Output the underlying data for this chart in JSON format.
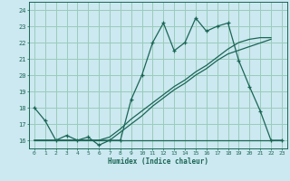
{
  "title": "",
  "xlabel": "Humidex (Indice chaleur)",
  "background_color": "#cce8f0",
  "grid_color": "#99ccbb",
  "line_color": "#1a6655",
  "xlim": [
    -0.5,
    23.5
  ],
  "ylim": [
    15.5,
    24.5
  ],
  "xticks": [
    0,
    1,
    2,
    3,
    4,
    5,
    6,
    7,
    8,
    9,
    10,
    11,
    12,
    13,
    14,
    15,
    16,
    17,
    18,
    19,
    20,
    21,
    22,
    23
  ],
  "yticks": [
    16,
    17,
    18,
    19,
    20,
    21,
    22,
    23,
    24
  ],
  "line1_x": [
    0,
    1,
    2,
    3,
    4,
    5,
    6,
    7,
    8,
    9,
    10,
    11,
    12,
    13,
    14,
    15,
    16,
    17,
    18,
    19,
    20,
    21,
    22,
    23
  ],
  "line1_y": [
    18,
    17.2,
    16,
    16.3,
    16,
    16.2,
    15.7,
    16,
    16,
    18.5,
    20,
    22,
    23.2,
    21.5,
    22,
    23.5,
    22.7,
    23,
    23.2,
    20.9,
    19.3,
    17.8,
    16,
    16
  ],
  "line2_x": [
    0,
    23
  ],
  "line2_y": [
    16,
    16
  ],
  "line3_x": [
    0,
    1,
    2,
    3,
    4,
    5,
    6,
    7,
    8,
    9,
    10,
    11,
    12,
    13,
    14,
    15,
    16,
    17,
    18,
    19,
    20,
    21,
    22
  ],
  "line3_y": [
    16,
    16,
    16,
    16,
    16,
    16,
    16,
    16.2,
    16.7,
    17.3,
    17.8,
    18.3,
    18.8,
    19.3,
    19.7,
    20.2,
    20.6,
    21.1,
    21.6,
    22.0,
    22.2,
    22.3,
    22.3
  ],
  "line4_x": [
    0,
    1,
    2,
    3,
    4,
    5,
    6,
    7,
    8,
    9,
    10,
    11,
    12,
    13,
    14,
    15,
    16,
    17,
    18,
    22
  ],
  "line4_y": [
    16,
    16,
    16,
    16,
    16,
    16,
    16,
    16,
    16.5,
    17.0,
    17.5,
    18.1,
    18.6,
    19.1,
    19.5,
    20.0,
    20.4,
    20.9,
    21.3,
    22.2
  ]
}
